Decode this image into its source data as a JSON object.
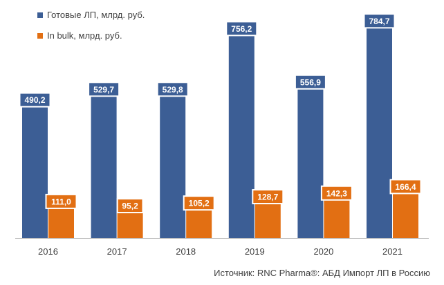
{
  "chart_data": {
    "type": "bar",
    "categories": [
      "2016",
      "2017",
      "2018",
      "2019",
      "2020",
      "2021"
    ],
    "series": [
      {
        "name": "Готовые ЛП, млрд. руб.",
        "values": [
          490.2,
          529.7,
          529.8,
          756.2,
          556.9,
          784.7
        ],
        "labels": [
          "490,2",
          "529,7",
          "529,8",
          "756,2",
          "556,9",
          "784,7"
        ],
        "color": "#3C5E95"
      },
      {
        "name": "In bulk, млрд. руб.",
        "values": [
          111.0,
          95.2,
          105.2,
          128.7,
          142.3,
          166.4
        ],
        "labels": [
          "111,0",
          "95,2",
          "105,2",
          "128,7",
          "142,3",
          "166,4"
        ],
        "color": "#E26F13"
      }
    ],
    "ylim": [
      0,
      850
    ],
    "grid": false,
    "legend": "top-left",
    "source": "Источник: RNC Pharma®: АБД Импорт ЛП в Россию"
  }
}
